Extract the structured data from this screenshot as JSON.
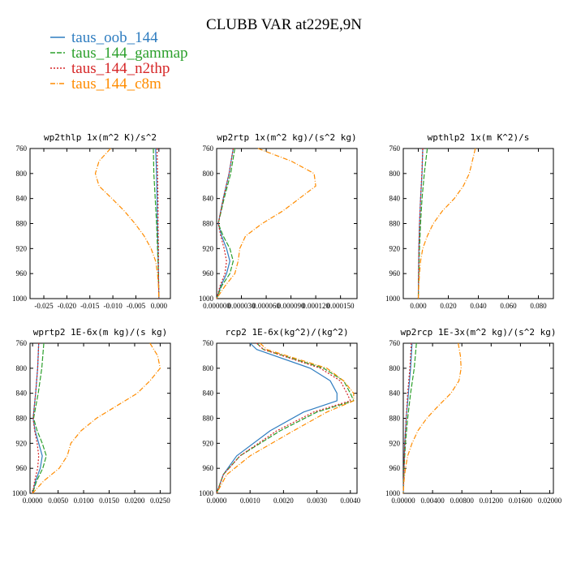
{
  "figure": {
    "title": "CLUBB VAR at229E,9N",
    "legend": [
      {
        "label": "taus_oob_144",
        "color": "#2f7dc0",
        "dash": ""
      },
      {
        "label": "taus_144_gammap",
        "color": "#2ca02c",
        "dash": "6,2"
      },
      {
        "label": "taus_144_n2thp",
        "color": "#d62728",
        "dash": "2,2"
      },
      {
        "label": "taus_144_c8m",
        "color": "#ff8c00",
        "dash": "6,2,1,2"
      }
    ]
  },
  "chart_data": [
    {
      "type": "line",
      "title": "wp2thlp  1x(m^2 K)/s^2",
      "xlim": [
        -0.028,
        0.0025
      ],
      "ylim": [
        760,
        1000
      ],
      "xticks": [
        -0.025,
        -0.02,
        -0.015,
        -0.01,
        -0.005,
        0.0
      ],
      "xticklabels": [
        "-0.025",
        "-0.020",
        "-0.015",
        "-0.010",
        "-0.005",
        "0.000"
      ],
      "yticks": [
        760,
        800,
        840,
        880,
        920,
        960,
        1000
      ],
      "yticklabels": [
        "760",
        "800",
        "840",
        "880",
        "920",
        "960",
        "1000"
      ],
      "series": [
        {
          "name": "taus_oob_144",
          "y": [
            760,
            800,
            840,
            880,
            920,
            960,
            1000
          ],
          "x": [
            -0.0007,
            -0.0005,
            -0.0004,
            -0.0003,
            -0.0002,
            -0.0001,
            0.0
          ]
        },
        {
          "name": "taus_144_gammap",
          "y": [
            760,
            800,
            840,
            880,
            920,
            960,
            1000
          ],
          "x": [
            -0.0012,
            -0.0011,
            -0.0008,
            -0.0005,
            -0.0003,
            -0.0001,
            0.0
          ]
        },
        {
          "name": "taus_144_n2thp",
          "y": [
            760,
            800,
            840,
            880,
            920,
            960,
            1000
          ],
          "x": [
            -0.0004,
            -0.0003,
            -0.0002,
            -0.0002,
            -0.0001,
            -0.0001,
            0.0
          ]
        },
        {
          "name": "taus_144_c8m",
          "y": [
            760,
            780,
            800,
            820,
            840,
            860,
            880,
            900,
            920,
            940,
            960,
            980,
            1000
          ],
          "x": [
            -0.0105,
            -0.013,
            -0.0138,
            -0.013,
            -0.0102,
            -0.0075,
            -0.0052,
            -0.0032,
            -0.0017,
            -0.0007,
            -0.0003,
            -0.0001,
            0.0
          ]
        }
      ]
    },
    {
      "type": "line",
      "title": "wp2rtp  1x(m^2 kg)/(s^2 kg)",
      "xlim": [
        0.0,
        0.00017
      ],
      "ylim": [
        760,
        1000
      ],
      "xticks": [
        0.0,
        3e-05,
        6e-05,
        9e-05,
        0.00012,
        0.00015
      ],
      "xticklabels": [
        "0.000000",
        "0.000030",
        "0.000060",
        "0.000090",
        "0.000120",
        "0.000150"
      ],
      "yticks": [
        760,
        800,
        840,
        880,
        920,
        960,
        1000
      ],
      "yticklabels": [
        "760",
        "800",
        "840",
        "880",
        "920",
        "960",
        "1000"
      ],
      "series": [
        {
          "name": "taus_oob_144",
          "y": [
            760,
            800,
            840,
            880,
            900,
            920,
            940,
            960,
            980,
            1000
          ],
          "x": [
            2e-05,
            1.5e-05,
            8e-06,
            2e-06,
            6e-06,
            1.2e-05,
            1.6e-05,
            1.2e-05,
            5e-06,
            0.0
          ]
        },
        {
          "name": "taus_144_gammap",
          "y": [
            760,
            800,
            840,
            880,
            900,
            920,
            940,
            960,
            980,
            1000
          ],
          "x": [
            2.2e-05,
            1.7e-05,
            9e-06,
            2e-06,
            8e-06,
            1.6e-05,
            2e-05,
            1.6e-05,
            6e-06,
            0.0
          ]
        },
        {
          "name": "taus_144_n2thp",
          "y": [
            760,
            800,
            840,
            880,
            900,
            920,
            940,
            960,
            980,
            1000
          ],
          "x": [
            2e-05,
            1.5e-05,
            8e-06,
            2e-06,
            5e-06,
            9e-06,
            1.2e-05,
            1e-05,
            4e-06,
            0.0
          ]
        },
        {
          "name": "taus_144_c8m",
          "y": [
            760,
            780,
            800,
            820,
            840,
            860,
            880,
            900,
            920,
            940,
            960,
            980,
            1000
          ],
          "x": [
            5e-05,
            9e-05,
            0.000118,
            0.00012,
            0.0001,
            8e-05,
            5.5e-05,
            3.5e-05,
            2.8e-05,
            2.6e-05,
            2.2e-05,
            1e-05,
            0.0
          ]
        }
      ]
    },
    {
      "type": "line",
      "title": "wpthlp2  1x(m K^2)/s",
      "xlim": [
        -0.01,
        0.09
      ],
      "ylim": [
        760,
        1000
      ],
      "xticks": [
        0.0,
        0.02,
        0.04,
        0.06,
        0.08
      ],
      "xticklabels": [
        "0.000",
        "0.020",
        "0.040",
        "0.060",
        "0.080"
      ],
      "yticks": [
        760,
        800,
        840,
        880,
        920,
        960,
        1000
      ],
      "yticklabels": [
        "760",
        "800",
        "840",
        "880",
        "920",
        "960",
        "1000"
      ],
      "series": [
        {
          "name": "taus_oob_144",
          "y": [
            760,
            800,
            840,
            880,
            920,
            960,
            1000
          ],
          "x": [
            0.003,
            0.0025,
            0.0015,
            0.0008,
            0.0004,
            0.0002,
            0.0
          ]
        },
        {
          "name": "taus_144_gammap",
          "y": [
            760,
            800,
            840,
            880,
            920,
            960,
            1000
          ],
          "x": [
            0.006,
            0.004,
            0.0025,
            0.0015,
            0.0008,
            0.0003,
            0.0
          ]
        },
        {
          "name": "taus_144_n2thp",
          "y": [
            760,
            800,
            840,
            880,
            920,
            960,
            1000
          ],
          "x": [
            0.003,
            0.0024,
            0.0015,
            0.0008,
            0.0004,
            0.0002,
            0.0
          ]
        },
        {
          "name": "taus_144_c8m",
          "y": [
            760,
            780,
            800,
            820,
            840,
            860,
            880,
            900,
            920,
            940,
            960,
            980,
            1000
          ],
          "x": [
            0.038,
            0.036,
            0.034,
            0.03,
            0.024,
            0.016,
            0.01,
            0.006,
            0.003,
            0.0015,
            0.0008,
            0.0003,
            0.0
          ]
        }
      ]
    },
    {
      "type": "line",
      "title": "wprtp2  1E-6x(m kg)/(s kg)",
      "xlim": [
        -0.0005,
        0.027
      ],
      "ylim": [
        760,
        1000
      ],
      "xticks": [
        0.0,
        0.005,
        0.01,
        0.015,
        0.02,
        0.025
      ],
      "xticklabels": [
        "0.0000",
        "0.0050",
        "0.0100",
        "0.0150",
        "0.0200",
        "0.0250"
      ],
      "yticks": [
        760,
        800,
        840,
        880,
        920,
        960,
        1000
      ],
      "yticklabels": [
        "760",
        "800",
        "840",
        "880",
        "920",
        "960",
        "1000"
      ],
      "series": [
        {
          "name": "taus_oob_144",
          "y": [
            760,
            800,
            840,
            880,
            900,
            920,
            940,
            960,
            980,
            1000
          ],
          "x": [
            0.0012,
            0.001,
            0.0006,
            0.0001,
            0.0005,
            0.0012,
            0.0019,
            0.0015,
            0.0006,
            0.0
          ]
        },
        {
          "name": "taus_144_gammap",
          "y": [
            760,
            800,
            840,
            880,
            900,
            920,
            940,
            960,
            980,
            1000
          ],
          "x": [
            0.0022,
            0.0018,
            0.0011,
            0.0002,
            0.0009,
            0.0019,
            0.0027,
            0.002,
            0.0008,
            0.0
          ]
        },
        {
          "name": "taus_144_n2thp",
          "y": [
            760,
            800,
            840,
            880,
            900,
            920,
            940,
            960,
            980,
            1000
          ],
          "x": [
            0.0012,
            0.001,
            0.0006,
            0.0001,
            0.0004,
            0.0009,
            0.0012,
            0.001,
            0.0004,
            0.0
          ]
        },
        {
          "name": "taus_144_c8m",
          "y": [
            760,
            780,
            800,
            820,
            840,
            860,
            880,
            900,
            920,
            940,
            960,
            980,
            1000
          ],
          "x": [
            0.023,
            0.0245,
            0.025,
            0.023,
            0.0205,
            0.0165,
            0.0125,
            0.0095,
            0.0075,
            0.0068,
            0.0052,
            0.0022,
            0.0
          ]
        }
      ]
    },
    {
      "type": "line",
      "title": "rcp2  1E-6x(kg^2)/(kg^2)",
      "xlim": [
        0.0,
        0.0042
      ],
      "ylim": [
        760,
        1000
      ],
      "xticks": [
        0.0,
        0.001,
        0.002,
        0.003,
        0.004
      ],
      "xticklabels": [
        "0.0000",
        "0.0010",
        "0.0020",
        "0.0030",
        "0.0040"
      ],
      "yticks": [
        760,
        800,
        840,
        880,
        920,
        960,
        1000
      ],
      "yticklabels": [
        "760",
        "800",
        "840",
        "880",
        "920",
        "960",
        "1000"
      ],
      "series": [
        {
          "name": "taus_oob_144",
          "y": [
            760,
            770,
            800,
            820,
            840,
            852,
            870,
            900,
            940,
            970,
            1000
          ],
          "x": [
            0.001,
            0.0012,
            0.0028,
            0.0034,
            0.0036,
            0.0036,
            0.0026,
            0.0016,
            0.0006,
            0.0002,
            0.0
          ]
        },
        {
          "name": "taus_144_gammap",
          "y": [
            760,
            770,
            800,
            820,
            840,
            852,
            870,
            900,
            940,
            970,
            1000
          ],
          "x": [
            0.0012,
            0.0014,
            0.0032,
            0.0038,
            0.004,
            0.0041,
            0.003,
            0.0019,
            0.0007,
            0.0002,
            0.0
          ]
        },
        {
          "name": "taus_144_n2thp",
          "y": [
            760,
            770,
            800,
            820,
            840,
            852,
            870,
            900,
            940,
            970,
            1000
          ],
          "x": [
            0.0012,
            0.0014,
            0.0031,
            0.0037,
            0.0039,
            0.004,
            0.0029,
            0.0018,
            0.0007,
            0.0002,
            0.0
          ]
        },
        {
          "name": "taus_144_c8m",
          "y": [
            760,
            770,
            800,
            820,
            840,
            852,
            870,
            900,
            940,
            970,
            1000
          ],
          "x": [
            0.0013,
            0.0015,
            0.0033,
            0.0038,
            0.0041,
            0.0041,
            0.0033,
            0.0023,
            0.001,
            0.0003,
            0.0
          ]
        }
      ]
    },
    {
      "type": "line",
      "title": "wp2rcp  1E-3x(m^2 kg)/(s^2 kg)",
      "xlim": [
        0.0,
        0.0205
      ],
      "ylim": [
        760,
        1000
      ],
      "xticks": [
        0.0,
        0.004,
        0.008,
        0.012,
        0.016,
        0.02
      ],
      "xticklabels": [
        "0.00000",
        "0.00400",
        "0.00800",
        "0.01200",
        "0.01600",
        "0.02000"
      ],
      "yticks": [
        760,
        800,
        840,
        880,
        920,
        960,
        1000
      ],
      "yticklabels": [
        "760",
        "800",
        "840",
        "880",
        "920",
        "960",
        "1000"
      ],
      "series": [
        {
          "name": "taus_oob_144",
          "y": [
            760,
            800,
            840,
            880,
            920,
            960,
            1000
          ],
          "x": [
            0.0012,
            0.001,
            0.0007,
            0.0004,
            0.0002,
            0.0001,
            0.0
          ]
        },
        {
          "name": "taus_144_gammap",
          "y": [
            760,
            800,
            840,
            880,
            920,
            960,
            1000
          ],
          "x": [
            0.0018,
            0.0015,
            0.001,
            0.0006,
            0.0003,
            0.0001,
            0.0
          ]
        },
        {
          "name": "taus_144_n2thp",
          "y": [
            760,
            800,
            840,
            880,
            920,
            960,
            1000
          ],
          "x": [
            0.0011,
            0.0009,
            0.0006,
            0.0004,
            0.0002,
            0.0001,
            0.0
          ]
        },
        {
          "name": "taus_144_c8m",
          "y": [
            760,
            780,
            800,
            820,
            840,
            860,
            880,
            900,
            920,
            940,
            960,
            980,
            1000
          ],
          "x": [
            0.0075,
            0.0078,
            0.0079,
            0.0076,
            0.0065,
            0.0048,
            0.0032,
            0.002,
            0.0012,
            0.0006,
            0.0003,
            0.0001,
            0.0
          ]
        }
      ]
    }
  ]
}
